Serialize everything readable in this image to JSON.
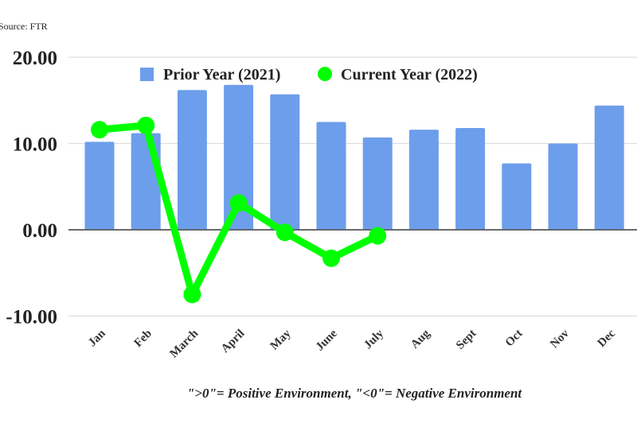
{
  "source": "Source: FTR",
  "note": "\">0\"= Positive Environment, \"<0\"= Negative Environment",
  "chart_data": {
    "type": "bar+line",
    "categories": [
      "Jan",
      "Feb",
      "March",
      "April",
      "May",
      "June",
      "July",
      "Aug",
      "Sept",
      "Oct",
      "Nov",
      "Dec"
    ],
    "series": [
      {
        "name": "Prior Year (2021)",
        "type": "bar",
        "color": "#6d9eeb",
        "values": [
          10.2,
          11.2,
          16.2,
          16.8,
          15.7,
          12.5,
          10.7,
          11.6,
          11.8,
          7.7,
          10.0,
          14.4
        ]
      },
      {
        "name": "Current Year (2022)",
        "type": "line",
        "color": "#00ff00",
        "values": [
          11.6,
          12.1,
          -7.5,
          3.1,
          -0.3,
          -3.3,
          -0.7,
          null,
          null,
          null,
          null,
          null
        ]
      }
    ],
    "ylim": [
      -10,
      20
    ],
    "yticks": [
      "-10.00",
      "0.00",
      "10.00",
      "20.00"
    ],
    "ytick_values": [
      -10,
      0,
      10,
      20
    ],
    "grid": true,
    "legend": "top"
  }
}
